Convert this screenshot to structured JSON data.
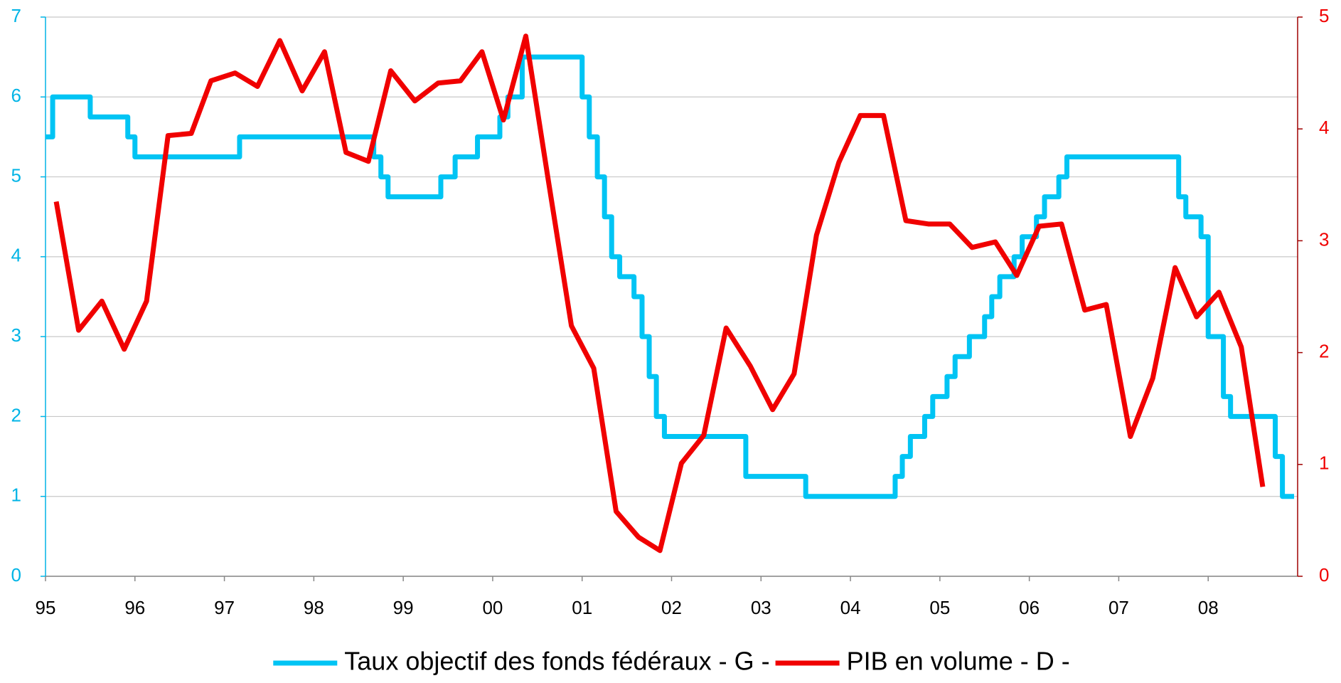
{
  "chart_data": {
    "type": "line",
    "xlim": [
      1995,
      2009
    ],
    "xticks": [
      {
        "value": 1995,
        "label": "95"
      },
      {
        "value": 1996,
        "label": "96"
      },
      {
        "value": 1997,
        "label": "97"
      },
      {
        "value": 1998,
        "label": "98"
      },
      {
        "value": 1999,
        "label": "99"
      },
      {
        "value": 2000,
        "label": "00"
      },
      {
        "value": 2001,
        "label": "01"
      },
      {
        "value": 2002,
        "label": "02"
      },
      {
        "value": 2003,
        "label": "03"
      },
      {
        "value": 2004,
        "label": "04"
      },
      {
        "value": 2005,
        "label": "05"
      },
      {
        "value": 2006,
        "label": "06"
      },
      {
        "value": 2007,
        "label": "07"
      },
      {
        "value": 2008,
        "label": "08"
      }
    ],
    "ylim": [
      0,
      7
    ],
    "yticks": [
      0,
      1,
      2,
      3,
      4,
      5,
      6,
      7
    ],
    "y2lim": [
      0,
      5
    ],
    "y2ticks": [
      0,
      1,
      2,
      3,
      4,
      5
    ],
    "grid": true,
    "legend": "bottom",
    "series": [
      {
        "name": "Taux objectif des fonds fédéraux - G -",
        "color": "#00c4f4",
        "step": true,
        "axis": "y",
        "x": [
          1995.0,
          1995.08,
          1995.5,
          1995.92,
          1996.0,
          1997.17,
          1998.67,
          1998.75,
          1998.83,
          1999.42,
          1999.58,
          1999.83,
          2000.08,
          2000.17,
          2000.33,
          2001.0,
          2001.08,
          2001.17,
          2001.25,
          2001.33,
          2001.42,
          2001.58,
          2001.67,
          2001.75,
          2001.83,
          2001.92,
          2002.83,
          2003.5,
          2004.5,
          2004.58,
          2004.67,
          2004.83,
          2004.92,
          2005.08,
          2005.17,
          2005.33,
          2005.5,
          2005.58,
          2005.67,
          2005.83,
          2005.92,
          2006.08,
          2006.17,
          2006.33,
          2006.42,
          2007.67,
          2007.75,
          2007.92,
          2008.0,
          2008.17,
          2008.25,
          2008.75,
          2008.83,
          2008.96
        ],
        "values": [
          5.5,
          6.0,
          5.75,
          5.5,
          5.25,
          5.5,
          5.25,
          5.0,
          4.75,
          5.0,
          5.25,
          5.5,
          5.75,
          6.0,
          6.5,
          6.0,
          5.5,
          5.0,
          4.5,
          4.0,
          3.75,
          3.5,
          3.0,
          2.5,
          2.0,
          1.75,
          1.25,
          1.0,
          1.25,
          1.5,
          1.75,
          2.0,
          2.25,
          2.5,
          2.75,
          3.0,
          3.25,
          3.5,
          3.75,
          4.0,
          4.25,
          4.5,
          4.75,
          5.0,
          5.25,
          4.75,
          4.5,
          4.25,
          3.0,
          2.25,
          2.0,
          1.5,
          1.0,
          1.0
        ]
      },
      {
        "name": "PIB en volume - D -",
        "color": "#f00000",
        "step": false,
        "axis": "y2",
        "x": [
          1995.12,
          1995.37,
          1995.63,
          1995.88,
          1996.13,
          1996.37,
          1996.63,
          1996.85,
          1997.12,
          1997.37,
          1997.62,
          1997.87,
          1998.12,
          1998.36,
          1998.61,
          1998.86,
          1999.13,
          1999.39,
          1999.64,
          1999.88,
          2000.12,
          2000.37,
          2000.62,
          2000.88,
          2001.13,
          2001.38,
          2001.63,
          2001.87,
          2002.11,
          2002.36,
          2002.61,
          2002.88,
          2003.13,
          2003.37,
          2003.62,
          2003.87,
          2004.11,
          2004.37,
          2004.62,
          2004.87,
          2005.11,
          2005.36,
          2005.62,
          2005.86,
          2006.11,
          2006.36,
          2006.62,
          2006.86,
          2007.13,
          2007.38,
          2007.63,
          2007.87,
          2008.12,
          2008.37,
          2008.61
        ],
        "values": [
          3.35,
          2.2,
          2.46,
          2.03,
          2.46,
          3.94,
          3.96,
          4.43,
          4.5,
          4.38,
          4.79,
          4.34,
          4.69,
          3.79,
          3.71,
          4.52,
          4.25,
          4.41,
          4.43,
          4.69,
          4.08,
          4.83,
          3.55,
          2.24,
          1.86,
          0.58,
          0.35,
          0.23,
          1.01,
          1.26,
          2.22,
          1.88,
          1.49,
          1.81,
          3.05,
          3.7,
          4.12,
          4.12,
          3.18,
          3.15,
          3.15,
          2.94,
          2.99,
          2.69,
          3.13,
          3.15,
          2.38,
          2.43,
          1.25,
          1.77,
          2.76,
          2.32,
          2.54,
          2.05,
          0.8
        ]
      }
    ]
  }
}
